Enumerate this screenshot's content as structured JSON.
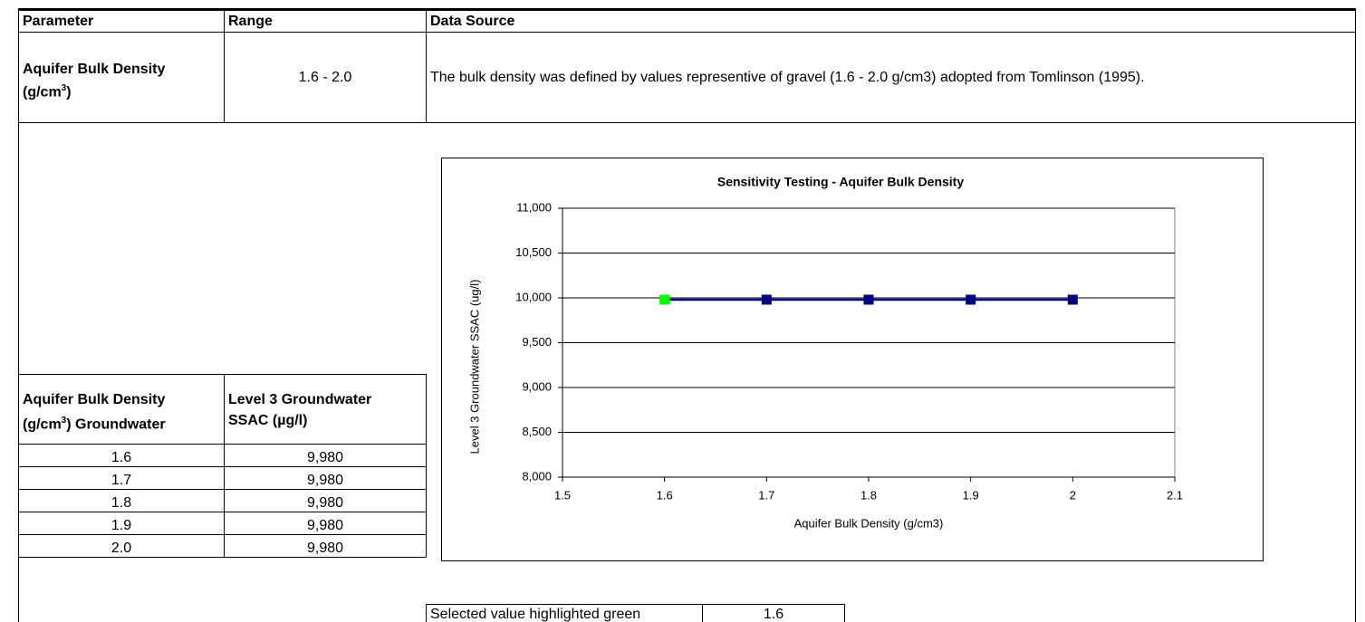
{
  "header": {
    "columns": [
      "Parameter",
      "Range",
      "Data Source"
    ],
    "parameter": {
      "text": "Aquifer Bulk Density",
      "pre": "(g/cm",
      "sup": "3",
      "post": ")"
    },
    "range": "1.6 - 2.0",
    "source": "The bulk density was defined by values representive of gravel (1.6 - 2.0 g/cm3) adopted from Tomlinson (1995)."
  },
  "table": {
    "col1": {
      "line1": "Aquifer Bulk Density",
      "pre": "(g/cm",
      "sup": "3",
      "post": ") Groundwater"
    },
    "col2": {
      "line1": "Level 3 Groundwater",
      "line2": "SSAC (µg/l)"
    },
    "rows": [
      [
        "1.6",
        "9,980"
      ],
      [
        "1.7",
        "9,980"
      ],
      [
        "1.8",
        "9,980"
      ],
      [
        "1.9",
        "9,980"
      ],
      [
        "2.0",
        "9,980"
      ]
    ]
  },
  "chart_data": {
    "type": "line",
    "title": "Sensitivity Testing - Aquifer Bulk Density",
    "x_label": "Aquifer Bulk Density (g/cm3)",
    "y_label": "Level 3 Groundwater SSAC (ug/l)",
    "x": [
      1.6,
      1.7,
      1.8,
      1.9,
      2
    ],
    "series": [
      {
        "name": "Level 3 Groundwater SSAC",
        "color": "#000080",
        "values": [
          9980,
          9980,
          9980,
          9980,
          9980
        ],
        "marker_colors": [
          "#00ff00",
          "#000080",
          "#000080",
          "#000080",
          "#000080"
        ]
      }
    ],
    "xlim": [
      1.5,
      2.1
    ],
    "xticks": [
      1.5,
      1.6,
      1.7,
      1.8,
      1.9,
      2,
      2.1
    ],
    "ylim": [
      8000,
      11000
    ],
    "yticks": [
      {
        "value": 8000,
        "label": "8,000"
      },
      {
        "value": 8500,
        "label": "8,500"
      },
      {
        "value": 9000,
        "label": "9,000"
      },
      {
        "value": 9500,
        "label": "9,500"
      },
      {
        "value": 10000,
        "label": "10,000"
      },
      {
        "value": 10500,
        "label": "10,500"
      },
      {
        "value": 11000,
        "label": "11,000"
      }
    ],
    "grid": true
  },
  "selection": {
    "label": "Selected value highlighted green",
    "value": "1.6"
  }
}
